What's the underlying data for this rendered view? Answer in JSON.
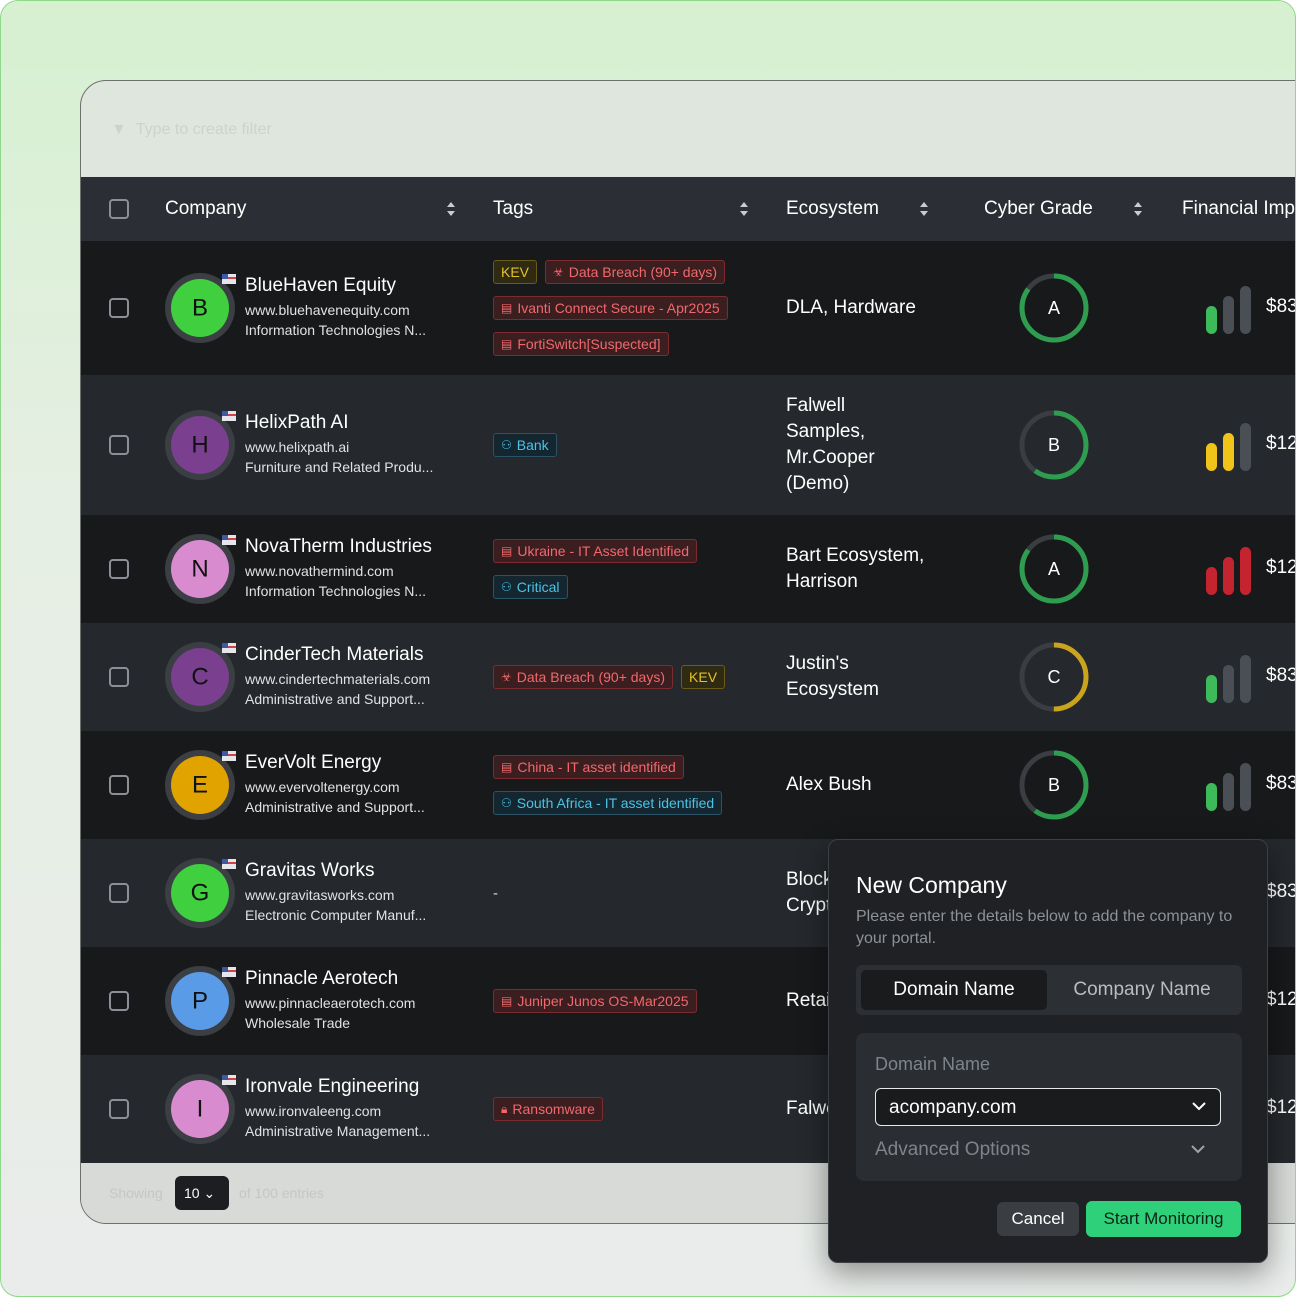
{
  "filter_placeholder": "Type to create filter",
  "table": {
    "headers": [
      "Company",
      "Tags",
      "Ecosystem",
      "Cyber Grade",
      "Financial Impact"
    ],
    "rows": [
      {
        "letter": "B",
        "avatar_color": "#3fcf3f",
        "name": "BlueHaven Equity",
        "domain": "www.bluehavenequity.com",
        "industry": "Information Technologies N...",
        "tags": [
          {
            "text": "KEV",
            "kind": "amber",
            "icon": "none"
          },
          {
            "text": "Data Breach (90+ days)",
            "kind": "red",
            "icon": "biohazard"
          },
          {
            "text": "Ivanti Connect Secure - Apr2025",
            "kind": "red",
            "icon": "server"
          },
          {
            "text": "FortiSwitch[Suspected]",
            "kind": "red",
            "icon": "server"
          }
        ],
        "ecosystem": [
          "DLA, Hardware"
        ],
        "grade": "A",
        "grade_color": "#2f9d50",
        "grade_progress": 0.85,
        "impact_level": 1,
        "impact_color": "#3dbb5a",
        "financial": "$83"
      },
      {
        "letter": "H",
        "avatar_color": "#7a3f8f",
        "name": "HelixPath AI",
        "domain": "www.helixpath.ai",
        "industry": "Furniture and Related Produ...",
        "tags": [
          {
            "text": "Bank",
            "kind": "blue",
            "icon": "user"
          }
        ],
        "ecosystem": [
          "Falwell",
          "Samples,",
          "Mr.Cooper",
          "(Demo)"
        ],
        "grade": "B",
        "grade_color": "#2f9d50",
        "grade_progress": 0.6,
        "impact_level": 2,
        "impact_color": "#f0c419",
        "financial": "$12"
      },
      {
        "letter": "N",
        "avatar_color": "#d98bd0",
        "name": "NovaTherm Industries",
        "domain": "www.novathermind.com",
        "industry": "Information Technologies N...",
        "tags": [
          {
            "text": "Ukraine - IT Asset Identified",
            "kind": "red",
            "icon": "server"
          },
          {
            "text": "Critical",
            "kind": "blue",
            "icon": "user"
          }
        ],
        "ecosystem": [
          "Bart Ecosystem,",
          "Harrison"
        ],
        "grade": "A",
        "grade_color": "#2f9d50",
        "grade_progress": 0.85,
        "impact_level": 3,
        "impact_color": "#c4242f",
        "financial": "$12"
      },
      {
        "letter": "C",
        "avatar_color": "#7a3f8f",
        "name": "CinderTech Materials",
        "domain": "www.cindertechmaterials.com",
        "industry": "Administrative and Support...",
        "tags": [
          {
            "text": "Data Breach (90+ days)",
            "kind": "red",
            "icon": "biohazard"
          },
          {
            "text": "KEV",
            "kind": "amber",
            "icon": "none"
          }
        ],
        "ecosystem": [
          "Justin's",
          "Ecosystem"
        ],
        "grade": "C",
        "grade_color": "#c9a41c",
        "grade_progress": 0.5,
        "impact_level": 1,
        "impact_color": "#3dbb5a",
        "financial": "$83"
      },
      {
        "letter": "E",
        "avatar_color": "#e0a300",
        "name": "EverVolt Energy",
        "domain": "www.evervoltenergy.com",
        "industry": "Administrative and Support...",
        "tags": [
          {
            "text": "China - IT asset identified",
            "kind": "red",
            "icon": "server"
          },
          {
            "text": "South Africa - IT asset identified",
            "kind": "blue",
            "icon": "user"
          }
        ],
        "ecosystem": [
          "Alex Bush"
        ],
        "grade": "B",
        "grade_color": "#2f9d50",
        "grade_progress": 0.6,
        "impact_level": 1,
        "impact_color": "#3dbb5a",
        "financial": "$83"
      },
      {
        "letter": "G",
        "avatar_color": "#3fcf3f",
        "name": "Gravitas Works",
        "domain": "www.gravitasworks.com",
        "industry": "Electronic Computer Manuf...",
        "tags": [
          {
            "text": "-",
            "kind": "plain",
            "icon": "none"
          }
        ],
        "ecosystem": [
          "Blockchain",
          "Crypto"
        ],
        "financial": "$83"
      },
      {
        "letter": "P",
        "avatar_color": "#5a9be8",
        "name": "Pinnacle Aerotech",
        "domain": "www.pinnacleaerotech.com",
        "industry": "Wholesale Trade",
        "tags": [
          {
            "text": "Juniper Junos OS-Mar2025",
            "kind": "red",
            "icon": "server"
          }
        ],
        "ecosystem": [
          "Retail"
        ],
        "financial": "$12"
      },
      {
        "letter": "I",
        "avatar_color": "#d98bd0",
        "name": "Ironvale Engineering",
        "domain": "www.ironvaleeng.com",
        "industry": "Administrative Management...",
        "tags": [
          {
            "text": "Ransomware",
            "kind": "red",
            "icon": "lock"
          }
        ],
        "ecosystem": [
          "Falwell"
        ],
        "financial": "$12"
      }
    ]
  },
  "footer": {
    "showing": "Showing",
    "page_size": "10",
    "entries": "of 100 entries"
  },
  "modal": {
    "title": "New Company",
    "subtitle": "Please enter the details below to add the company to your portal.",
    "tabs": [
      "Domain Name",
      "Company Name"
    ],
    "field_label": "Domain Name",
    "input_value": "acompany.com",
    "advanced": "Advanced Options",
    "cancel": "Cancel",
    "submit": "Start Monitoring"
  }
}
